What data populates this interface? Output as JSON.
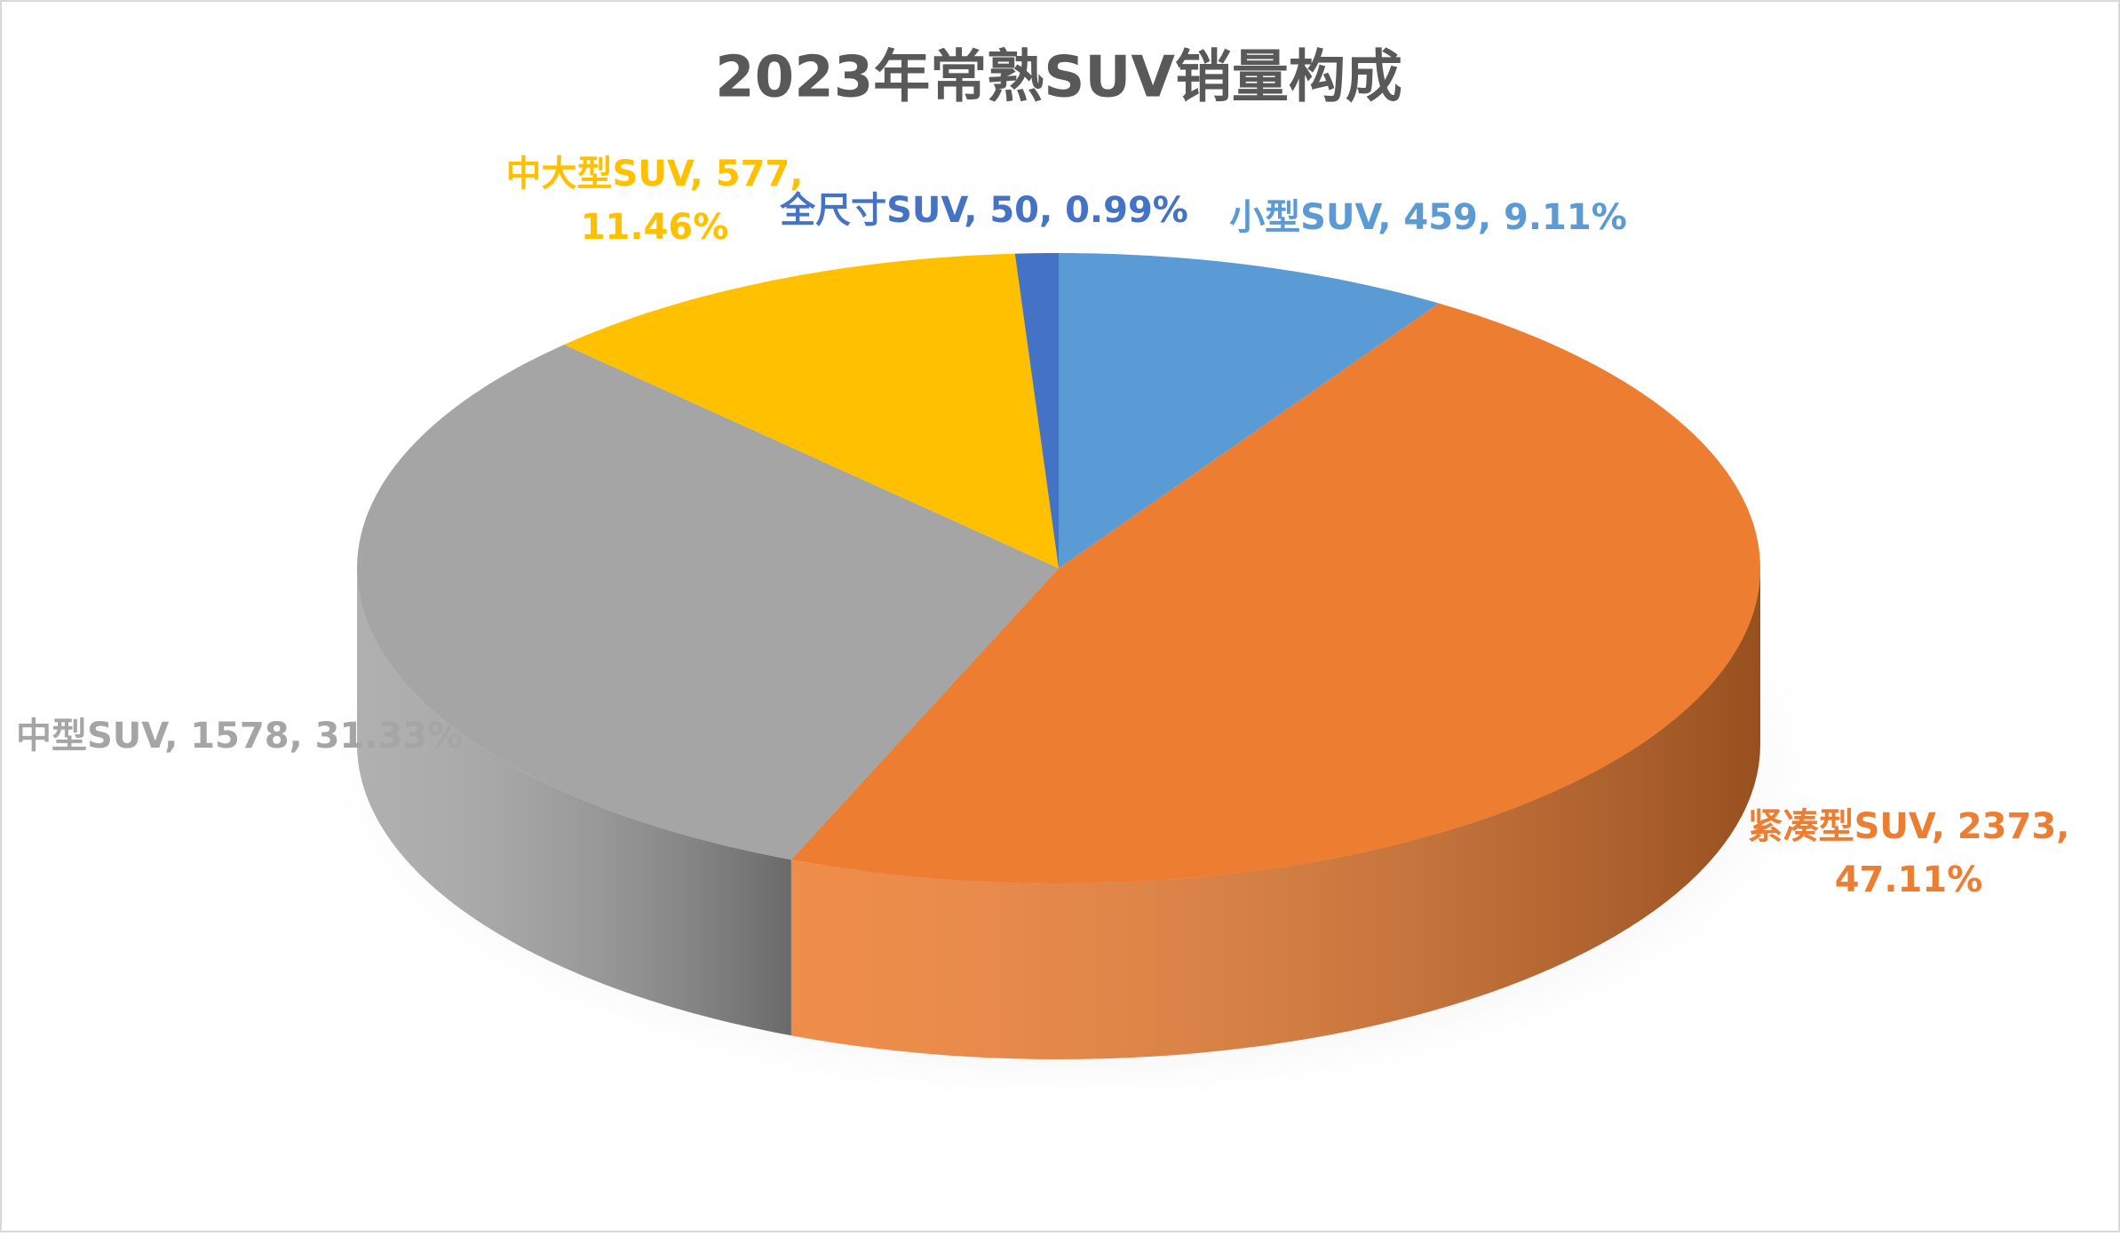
{
  "chart_data": {
    "type": "pie3d",
    "title": "2023年常熟SUV销量构成",
    "categories": [
      "小型SUV",
      "紧凑型SUV",
      "中型SUV",
      "中大型SUV",
      "全尺寸SUV"
    ],
    "values": [
      459,
      2373,
      1578,
      577,
      50
    ],
    "value_labels": [
      "小型SUV, 459, 9.11%",
      "紧凑型SUV, 2373, 47.11%",
      "中型SUV, 1578, 31.33%",
      "中大型SUV, 577, 11.46%",
      "全尺寸SUV, 50, 0.99%"
    ],
    "colors": [
      "#5b9bd5",
      "#ed7d31",
      "#a5a5a5",
      "#ffc000",
      "#4472c4"
    ]
  }
}
